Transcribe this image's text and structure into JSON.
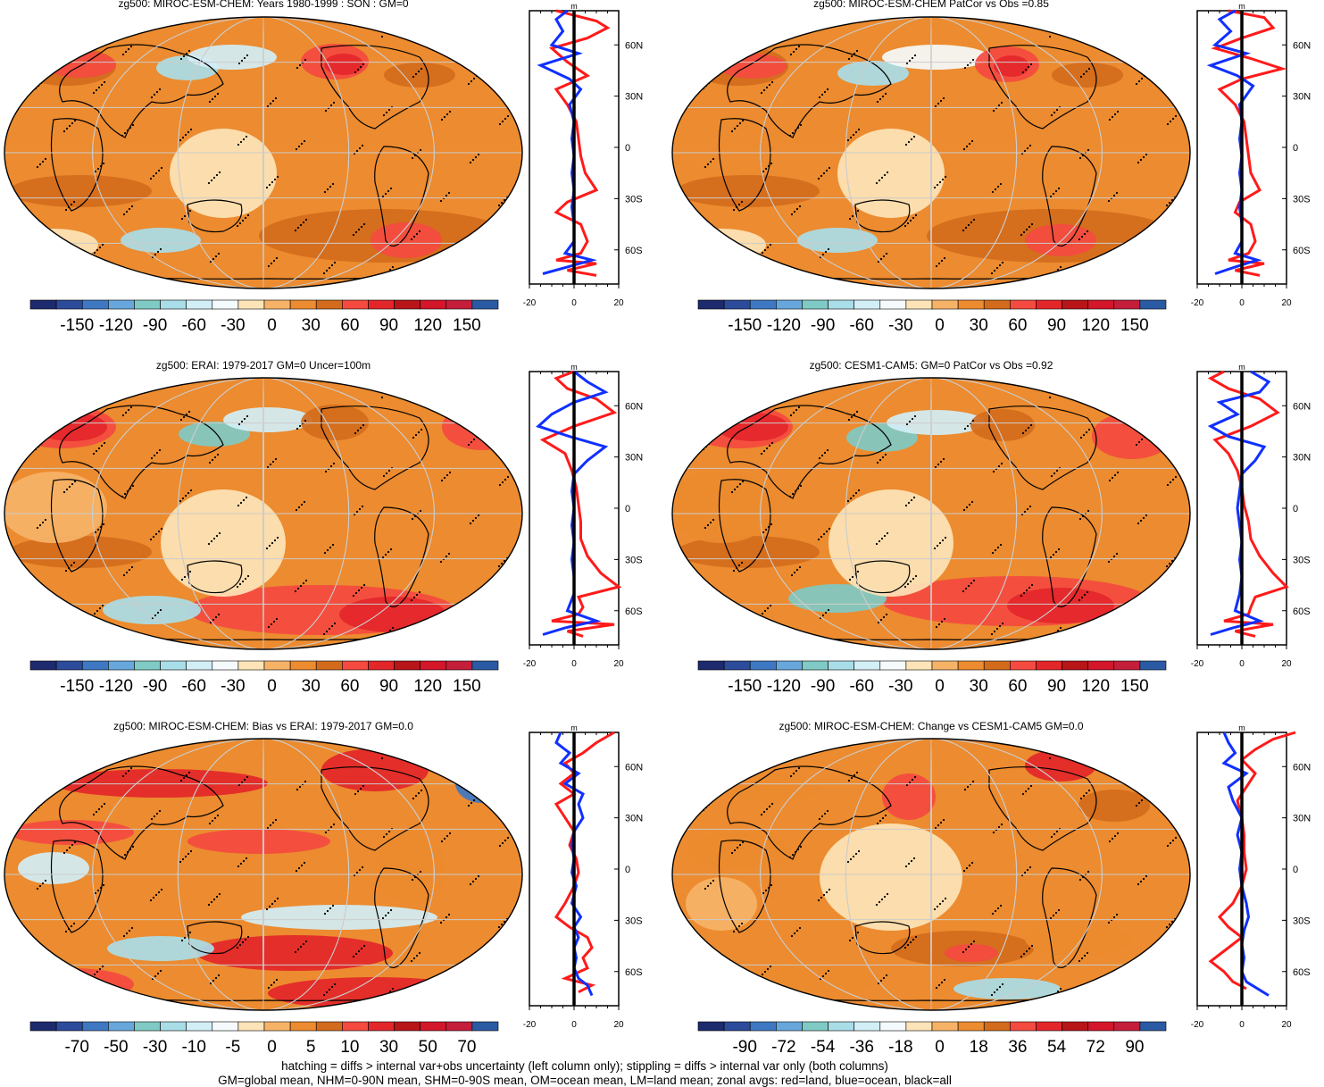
{
  "palette_colors": [
    "#1e2a6e",
    "#2c4b9a",
    "#3f78c2",
    "#67a7dc",
    "#7fcac4",
    "#a9dde8",
    "#d2eef6",
    "#f5fbfd",
    "#fde4b8",
    "#f6b368",
    "#ec8b2f",
    "#d26b1c",
    "#f44a40",
    "#e3262a",
    "#b81519",
    "#d3162a",
    "#c41e3b",
    "#2a5aa3"
  ],
  "panels": [
    {
      "id": "p1",
      "title": "zg500: MIROC-ESM-CHEM: Years 1980-1999 : SON : GM=0",
      "colorbar_labels": [
        "-150",
        "-120",
        "-90",
        "-60",
        "-30",
        "0",
        "30",
        "60",
        "90",
        "120",
        "150"
      ],
      "zonal_axis": {
        "unit": "m",
        "x_ticks": [
          "-20",
          "0",
          "20"
        ],
        "y_ticks": [
          "60N",
          "30N",
          "0",
          "30S",
          "60S"
        ]
      },
      "zonal_red": [
        [
          -8,
          80
        ],
        [
          10,
          74
        ],
        [
          15,
          70
        ],
        [
          6,
          64
        ],
        [
          -10,
          58
        ],
        [
          -3,
          50
        ],
        [
          6,
          42
        ],
        [
          -8,
          34
        ],
        [
          -3,
          25
        ],
        [
          1,
          15
        ],
        [
          2,
          5
        ],
        [
          3,
          -5
        ],
        [
          5,
          -15
        ],
        [
          10,
          -25
        ],
        [
          -3,
          -32
        ],
        [
          -8,
          -38
        ],
        [
          3,
          -45
        ],
        [
          6,
          -55
        ],
        [
          3,
          -62
        ],
        [
          -8,
          -66
        ],
        [
          10,
          -68
        ],
        [
          -3,
          -72
        ],
        [
          10,
          -75
        ]
      ],
      "zonal_blue": [
        [
          -3,
          80
        ],
        [
          -8,
          75
        ],
        [
          -5,
          68
        ],
        [
          -10,
          60
        ],
        [
          2,
          55
        ],
        [
          -15,
          48
        ],
        [
          -2,
          40
        ],
        [
          3,
          34
        ],
        [
          -2,
          25
        ],
        [
          0,
          15
        ],
        [
          -1,
          5
        ],
        [
          0,
          -5
        ],
        [
          -1,
          -15
        ],
        [
          0,
          -25
        ],
        [
          -1,
          -35
        ],
        [
          0,
          -45
        ],
        [
          0,
          -55
        ],
        [
          -4,
          -62
        ],
        [
          8,
          -66
        ],
        [
          -3,
          -70
        ],
        [
          -14,
          -74
        ]
      ]
    },
    {
      "id": "p2",
      "title": "zg500: MIROC-ESM-CHEM PatCor vs Obs =0.85",
      "colorbar_labels": [
        "-150",
        "-120",
        "-90",
        "-60",
        "-30",
        "0",
        "30",
        "60",
        "90",
        "120",
        "150"
      ],
      "zonal_axis": {
        "unit": "m",
        "x_ticks": [
          "-20",
          "0",
          "20"
        ],
        "y_ticks": [
          "60N",
          "30N",
          "0",
          "30S",
          "60S"
        ]
      },
      "zonal_red": [
        [
          -6,
          80
        ],
        [
          10,
          76
        ],
        [
          14,
          70
        ],
        [
          0,
          64
        ],
        [
          -12,
          58
        ],
        [
          4,
          52
        ],
        [
          18,
          46
        ],
        [
          0,
          40
        ],
        [
          -10,
          34
        ],
        [
          -3,
          25
        ],
        [
          1,
          15
        ],
        [
          2,
          5
        ],
        [
          3,
          -5
        ],
        [
          4,
          -15
        ],
        [
          8,
          -25
        ],
        [
          -1,
          -32
        ],
        [
          -3,
          -38
        ],
        [
          4,
          -45
        ],
        [
          6,
          -55
        ],
        [
          3,
          -62
        ],
        [
          -6,
          -66
        ],
        [
          10,
          -68
        ],
        [
          -3,
          -72
        ],
        [
          8,
          -75
        ]
      ],
      "zonal_blue": [
        [
          -3,
          80
        ],
        [
          -10,
          75
        ],
        [
          -5,
          68
        ],
        [
          -12,
          60
        ],
        [
          2,
          55
        ],
        [
          -14,
          48
        ],
        [
          -2,
          42
        ],
        [
          5,
          36
        ],
        [
          -1,
          25
        ],
        [
          0,
          15
        ],
        [
          -1,
          5
        ],
        [
          0,
          -5
        ],
        [
          -1,
          -15
        ],
        [
          0,
          -25
        ],
        [
          -1,
          -35
        ],
        [
          0,
          -45
        ],
        [
          0,
          -55
        ],
        [
          -3,
          -62
        ],
        [
          7,
          -66
        ],
        [
          -3,
          -70
        ],
        [
          -12,
          -74
        ]
      ]
    },
    {
      "id": "p3",
      "title": "zg500: ERAI: 1979-2017 GM=0 Uncer=100m",
      "colorbar_labels": [
        "-150",
        "-120",
        "-90",
        "-60",
        "-30",
        "0",
        "30",
        "60",
        "90",
        "120",
        "150"
      ],
      "zonal_axis": {
        "unit": "m",
        "x_ticks": [
          "-20",
          "0",
          "20"
        ],
        "y_ticks": [
          "60N",
          "30N",
          "0",
          "30S",
          "60S"
        ]
      },
      "zonal_red": [
        [
          0,
          80
        ],
        [
          -8,
          76
        ],
        [
          -3,
          70
        ],
        [
          10,
          64
        ],
        [
          18,
          56
        ],
        [
          0,
          48
        ],
        [
          -14,
          40
        ],
        [
          -4,
          32
        ],
        [
          -1,
          22
        ],
        [
          1,
          12
        ],
        [
          2,
          2
        ],
        [
          3,
          -8
        ],
        [
          3,
          -18
        ],
        [
          6,
          -28
        ],
        [
          12,
          -38
        ],
        [
          20,
          -46
        ],
        [
          2,
          -52
        ],
        [
          4,
          -58
        ],
        [
          2,
          -62
        ],
        [
          -10,
          -66
        ],
        [
          18,
          -68
        ],
        [
          -3,
          -72
        ],
        [
          4,
          -75
        ]
      ],
      "zonal_blue": [
        [
          0,
          80
        ],
        [
          6,
          74
        ],
        [
          14,
          68
        ],
        [
          0,
          62
        ],
        [
          -10,
          55
        ],
        [
          -16,
          48
        ],
        [
          -2,
          42
        ],
        [
          14,
          36
        ],
        [
          6,
          28
        ],
        [
          0,
          20
        ],
        [
          -1,
          10
        ],
        [
          0,
          0
        ],
        [
          -1,
          -10
        ],
        [
          0,
          -20
        ],
        [
          -1,
          -30
        ],
        [
          0,
          -40
        ],
        [
          0,
          -50
        ],
        [
          -3,
          -60
        ],
        [
          10,
          -66
        ],
        [
          -4,
          -70
        ],
        [
          -14,
          -74
        ]
      ]
    },
    {
      "id": "p4",
      "title": "zg500: CESM1-CAM5: GM=0 PatCor vs Obs =0.92",
      "colorbar_labels": [
        "-150",
        "-120",
        "-90",
        "-60",
        "-30",
        "0",
        "30",
        "60",
        "90",
        "120",
        "150"
      ],
      "zonal_axis": {
        "unit": "m",
        "x_ticks": [
          "-20",
          "0",
          "20"
        ],
        "y_ticks": [
          "60N",
          "30N",
          "0",
          "30S",
          "60S"
        ]
      },
      "zonal_red": [
        [
          -8,
          80
        ],
        [
          -14,
          76
        ],
        [
          -6,
          70
        ],
        [
          8,
          64
        ],
        [
          16,
          56
        ],
        [
          4,
          48
        ],
        [
          -12,
          40
        ],
        [
          -6,
          32
        ],
        [
          -2,
          22
        ],
        [
          0,
          12
        ],
        [
          1,
          2
        ],
        [
          3,
          -8
        ],
        [
          4,
          -18
        ],
        [
          8,
          -28
        ],
        [
          14,
          -38
        ],
        [
          20,
          -46
        ],
        [
          6,
          -52
        ],
        [
          4,
          -58
        ],
        [
          3,
          -62
        ],
        [
          -8,
          -66
        ],
        [
          14,
          -68
        ],
        [
          -3,
          -72
        ],
        [
          6,
          -75
        ]
      ],
      "zonal_blue": [
        [
          4,
          80
        ],
        [
          12,
          74
        ],
        [
          8,
          68
        ],
        [
          -10,
          62
        ],
        [
          -2,
          55
        ],
        [
          -14,
          48
        ],
        [
          -6,
          42
        ],
        [
          10,
          36
        ],
        [
          6,
          28
        ],
        [
          0,
          20
        ],
        [
          -1,
          10
        ],
        [
          -2,
          0
        ],
        [
          -1,
          -10
        ],
        [
          0,
          -20
        ],
        [
          -1,
          -30
        ],
        [
          0,
          -40
        ],
        [
          -1,
          -50
        ],
        [
          -3,
          -60
        ],
        [
          8,
          -66
        ],
        [
          -4,
          -70
        ],
        [
          -14,
          -74
        ]
      ]
    },
    {
      "id": "p5",
      "title": "zg500: MIROC-ESM-CHEM: Bias vs ERAI: 1979-2017  GM=0.0",
      "colorbar_labels": [
        "-70",
        "-50",
        "-30",
        "-10",
        "-5",
        "0",
        "5",
        "10",
        "30",
        "50",
        "70"
      ],
      "zonal_axis": {
        "unit": "m",
        "x_ticks": [
          "-20",
          "0",
          "20"
        ],
        "y_ticks": [
          "60N",
          "30N",
          "0",
          "30S",
          "60S"
        ]
      },
      "zonal_red": [
        [
          18,
          80
        ],
        [
          10,
          74
        ],
        [
          4,
          68
        ],
        [
          -4,
          62
        ],
        [
          0,
          56
        ],
        [
          -6,
          50
        ],
        [
          0,
          44
        ],
        [
          -8,
          38
        ],
        [
          -4,
          30
        ],
        [
          0,
          22
        ],
        [
          -2,
          14
        ],
        [
          1,
          6
        ],
        [
          2,
          -2
        ],
        [
          0,
          -10
        ],
        [
          -4,
          -20
        ],
        [
          -8,
          -28
        ],
        [
          -2,
          -34
        ],
        [
          6,
          -40
        ],
        [
          8,
          -46
        ],
        [
          4,
          -52
        ],
        [
          6,
          -58
        ],
        [
          -4,
          -64
        ],
        [
          8,
          -68
        ],
        [
          2,
          -72
        ]
      ],
      "zonal_blue": [
        [
          -6,
          80
        ],
        [
          -8,
          74
        ],
        [
          -2,
          68
        ],
        [
          -6,
          62
        ],
        [
          2,
          56
        ],
        [
          -4,
          50
        ],
        [
          4,
          44
        ],
        [
          2,
          38
        ],
        [
          4,
          30
        ],
        [
          0,
          22
        ],
        [
          -1,
          14
        ],
        [
          0,
          6
        ],
        [
          -1,
          -2
        ],
        [
          1,
          -10
        ],
        [
          -1,
          -20
        ],
        [
          3,
          -28
        ],
        [
          0,
          -34
        ],
        [
          2,
          -40
        ],
        [
          0,
          -46
        ],
        [
          1,
          -52
        ],
        [
          0,
          -58
        ],
        [
          2,
          -64
        ],
        [
          6,
          -68
        ],
        [
          8,
          -74
        ]
      ]
    },
    {
      "id": "p6",
      "title": "zg500: MIROC-ESM-CHEM: Change vs CESM1-CAM5 GM=0.0",
      "colorbar_labels": [
        "-90",
        "-72",
        "-54",
        "-36",
        "-18",
        "0",
        "18",
        "36",
        "54",
        "72",
        "90"
      ],
      "zonal_axis": {
        "unit": "m",
        "x_ticks": [
          "-20",
          "0",
          "20"
        ],
        "y_ticks": [
          "60N",
          "30N",
          "0",
          "30S",
          "60S"
        ]
      },
      "zonal_red": [
        [
          24,
          80
        ],
        [
          14,
          76
        ],
        [
          6,
          70
        ],
        [
          0,
          64
        ],
        [
          6,
          56
        ],
        [
          2,
          48
        ],
        [
          -2,
          40
        ],
        [
          0,
          30
        ],
        [
          1,
          20
        ],
        [
          1,
          10
        ],
        [
          2,
          0
        ],
        [
          0,
          -10
        ],
        [
          -4,
          -20
        ],
        [
          -10,
          -28
        ],
        [
          -6,
          -34
        ],
        [
          0,
          -40
        ],
        [
          -6,
          -46
        ],
        [
          -14,
          -54
        ],
        [
          -8,
          -60
        ],
        [
          -4,
          -66
        ],
        [
          2,
          -70
        ]
      ],
      "zonal_blue": [
        [
          -8,
          80
        ],
        [
          -6,
          74
        ],
        [
          -3,
          68
        ],
        [
          -8,
          62
        ],
        [
          2,
          56
        ],
        [
          -6,
          48
        ],
        [
          -4,
          40
        ],
        [
          0,
          30
        ],
        [
          -2,
          20
        ],
        [
          0,
          10
        ],
        [
          -1,
          0
        ],
        [
          0,
          -10
        ],
        [
          2,
          -20
        ],
        [
          3,
          -28
        ],
        [
          1,
          -36
        ],
        [
          0,
          -44
        ],
        [
          1,
          -52
        ],
        [
          0,
          -60
        ],
        [
          2,
          -66
        ],
        [
          12,
          -74
        ]
      ]
    }
  ],
  "chart_data": [
    {
      "type": "heatmap",
      "title": "zg500: MIROC-ESM-CHEM: Years 1980-1999 : SON : GM=0",
      "colorbar": [
        -150,
        -120,
        -90,
        -60,
        -30,
        0,
        30,
        60,
        90,
        120,
        150
      ],
      "zonal_xlim": [
        -20,
        20
      ],
      "zonal_unit": "m"
    },
    {
      "type": "heatmap",
      "title": "zg500: MIROC-ESM-CHEM PatCor vs Obs =0.85",
      "colorbar": [
        -150,
        -120,
        -90,
        -60,
        -30,
        0,
        30,
        60,
        90,
        120,
        150
      ],
      "zonal_xlim": [
        -20,
        20
      ],
      "zonal_unit": "m"
    },
    {
      "type": "heatmap",
      "title": "zg500: ERAI: 1979-2017 GM=0 Uncer=100m",
      "colorbar": [
        -150,
        -120,
        -90,
        -60,
        -30,
        0,
        30,
        60,
        90,
        120,
        150
      ],
      "zonal_xlim": [
        -20,
        20
      ],
      "zonal_unit": "m"
    },
    {
      "type": "heatmap",
      "title": "zg500: CESM1-CAM5: GM=0 PatCor vs Obs =0.92",
      "colorbar": [
        -150,
        -120,
        -90,
        -60,
        -30,
        0,
        30,
        60,
        90,
        120,
        150
      ],
      "zonal_xlim": [
        -20,
        20
      ],
      "zonal_unit": "m"
    },
    {
      "type": "heatmap",
      "title": "zg500: MIROC-ESM-CHEM: Bias vs ERAI: 1979-2017  GM=0.0",
      "colorbar": [
        -70,
        -50,
        -30,
        -10,
        -5,
        0,
        5,
        10,
        30,
        50,
        70
      ],
      "zonal_xlim": [
        -20,
        20
      ],
      "zonal_unit": "m"
    },
    {
      "type": "heatmap",
      "title": "zg500: MIROC-ESM-CHEM: Change vs CESM1-CAM5 GM=0.0",
      "colorbar": [
        -90,
        -72,
        -54,
        -36,
        -18,
        0,
        18,
        36,
        54,
        72,
        90
      ],
      "zonal_xlim": [
        -20,
        20
      ],
      "zonal_unit": "m"
    }
  ],
  "footer": {
    "line1": "hatching = diffs > internal var+obs uncertainty (left column only); stippling = diffs > internal var only (both columns)",
    "line2": "GM=global mean, NHM=0-90N mean, SHM=0-90S mean, OM=ocean mean, LM=land mean; zonal avgs: red=land, blue=ocean, black=all"
  }
}
